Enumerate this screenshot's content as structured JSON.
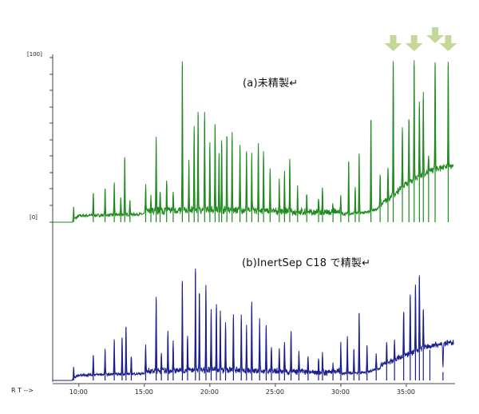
{
  "chart_data": [
    {
      "type": "line",
      "name": "panel-a",
      "label": "(a)未精製↵",
      "color": "#1e8a1e",
      "yticks": [
        "[100]",
        "[0]"
      ],
      "xlim": [
        8.0,
        38.6
      ],
      "ylim": [
        0,
        100
      ],
      "baseline": {
        "x": [
          8.0,
          9.5,
          10.0,
          15.0,
          20.0,
          25.0,
          29.0,
          30.0,
          32.0,
          33.0,
          34.0,
          35.0,
          36.0,
          37.0,
          38.5
        ],
        "y": [
          0,
          0,
          3,
          4,
          5,
          4,
          3,
          4,
          5,
          8,
          14,
          21,
          26,
          29,
          32
        ]
      },
      "peaks": [
        {
          "rt": 9.6,
          "height": 8
        },
        {
          "rt": 11.1,
          "height": 17
        },
        {
          "rt": 12.0,
          "height": 20
        },
        {
          "rt": 12.7,
          "height": 23
        },
        {
          "rt": 13.2,
          "height": 14
        },
        {
          "rt": 13.5,
          "height": 38
        },
        {
          "rt": 13.9,
          "height": 13
        },
        {
          "rt": 15.1,
          "height": 19
        },
        {
          "rt": 15.5,
          "height": 13
        },
        {
          "rt": 15.9,
          "height": 48
        },
        {
          "rt": 16.2,
          "height": 18
        },
        {
          "rt": 16.7,
          "height": 23
        },
        {
          "rt": 17.2,
          "height": 16
        },
        {
          "rt": 17.9,
          "height": 95
        },
        {
          "rt": 18.4,
          "height": 33
        },
        {
          "rt": 18.8,
          "height": 55
        },
        {
          "rt": 19.1,
          "height": 65
        },
        {
          "rt": 19.6,
          "height": 62
        },
        {
          "rt": 20.0,
          "height": 45
        },
        {
          "rt": 20.4,
          "height": 58
        },
        {
          "rt": 20.7,
          "height": 38
        },
        {
          "rt": 20.9,
          "height": 47
        },
        {
          "rt": 21.3,
          "height": 52
        },
        {
          "rt": 21.7,
          "height": 50
        },
        {
          "rt": 22.3,
          "height": 45
        },
        {
          "rt": 22.8,
          "height": 42
        },
        {
          "rt": 23.2,
          "height": 38
        },
        {
          "rt": 23.7,
          "height": 45
        },
        {
          "rt": 24.1,
          "height": 40
        },
        {
          "rt": 24.6,
          "height": 30
        },
        {
          "rt": 25.3,
          "height": 22
        },
        {
          "rt": 25.7,
          "height": 28
        },
        {
          "rt": 26.1,
          "height": 35
        },
        {
          "rt": 26.7,
          "height": 18
        },
        {
          "rt": 27.4,
          "height": 16
        },
        {
          "rt": 28.3,
          "height": 12
        },
        {
          "rt": 28.6,
          "height": 18
        },
        {
          "rt": 29.4,
          "height": 8
        },
        {
          "rt": 30.0,
          "height": 14
        },
        {
          "rt": 30.6,
          "height": 36
        },
        {
          "rt": 31.1,
          "height": 20
        },
        {
          "rt": 31.4,
          "height": 40
        },
        {
          "rt": 32.3,
          "height": 62
        },
        {
          "rt": 33.0,
          "height": 28
        },
        {
          "rt": 33.6,
          "height": 32
        },
        {
          "rt": 34.0,
          "height": 95
        },
        {
          "rt": 34.7,
          "height": 55
        },
        {
          "rt": 35.2,
          "height": 62
        },
        {
          "rt": 35.6,
          "height": 95
        },
        {
          "rt": 36.0,
          "height": 70
        },
        {
          "rt": 36.3,
          "height": 75
        },
        {
          "rt": 36.7,
          "height": 38
        },
        {
          "rt": 37.2,
          "height": 95
        },
        {
          "rt": 38.2,
          "height": 95
        }
      ],
      "markers": {
        "type": "down-arrow",
        "color": "#c5d89a",
        "rt": [
          34.0,
          35.6,
          37.2,
          38.2
        ]
      }
    },
    {
      "type": "line",
      "name": "panel-b",
      "label": "(b)InertSep C18 で精製↵",
      "color": "#1a1f8c",
      "xlim": [
        8.0,
        38.6
      ],
      "ylim": [
        0,
        100
      ],
      "baseline": {
        "x": [
          8.0,
          9.5,
          10.0,
          15.0,
          20.0,
          25.0,
          29.0,
          30.0,
          32.0,
          33.0,
          34.0,
          35.0,
          36.0,
          37.0,
          38.5
        ],
        "y": [
          0,
          0,
          3,
          4,
          5,
          4,
          3,
          4,
          5,
          8,
          12,
          16,
          20,
          23,
          25
        ]
      },
      "peaks": [
        {
          "rt": 9.6,
          "height": 8
        },
        {
          "rt": 11.1,
          "height": 18
        },
        {
          "rt": 12.0,
          "height": 21
        },
        {
          "rt": 12.7,
          "height": 28
        },
        {
          "rt": 13.3,
          "height": 30
        },
        {
          "rt": 13.6,
          "height": 38
        },
        {
          "rt": 14.0,
          "height": 17
        },
        {
          "rt": 15.1,
          "height": 22
        },
        {
          "rt": 15.9,
          "height": 58
        },
        {
          "rt": 16.3,
          "height": 18
        },
        {
          "rt": 16.8,
          "height": 32
        },
        {
          "rt": 17.2,
          "height": 24
        },
        {
          "rt": 17.9,
          "height": 70
        },
        {
          "rt": 18.3,
          "height": 30
        },
        {
          "rt": 18.9,
          "height": 78
        },
        {
          "rt": 19.2,
          "height": 62
        },
        {
          "rt": 19.7,
          "height": 65
        },
        {
          "rt": 20.1,
          "height": 48
        },
        {
          "rt": 20.5,
          "height": 52
        },
        {
          "rt": 20.8,
          "height": 46
        },
        {
          "rt": 21.2,
          "height": 38
        },
        {
          "rt": 21.8,
          "height": 45
        },
        {
          "rt": 22.4,
          "height": 43
        },
        {
          "rt": 22.8,
          "height": 35
        },
        {
          "rt": 23.2,
          "height": 54
        },
        {
          "rt": 23.8,
          "height": 40
        },
        {
          "rt": 24.3,
          "height": 38
        },
        {
          "rt": 24.7,
          "height": 22
        },
        {
          "rt": 25.3,
          "height": 20
        },
        {
          "rt": 25.7,
          "height": 25
        },
        {
          "rt": 26.2,
          "height": 34
        },
        {
          "rt": 26.8,
          "height": 18
        },
        {
          "rt": 27.5,
          "height": 16
        },
        {
          "rt": 28.3,
          "height": 14
        },
        {
          "rt": 28.6,
          "height": 16
        },
        {
          "rt": 29.4,
          "height": 8
        },
        {
          "rt": 30.0,
          "height": 24
        },
        {
          "rt": 30.5,
          "height": 30
        },
        {
          "rt": 31.0,
          "height": 22
        },
        {
          "rt": 31.4,
          "height": 48
        },
        {
          "rt": 32.0,
          "height": 24
        },
        {
          "rt": 32.7,
          "height": 18
        },
        {
          "rt": 33.5,
          "height": 25
        },
        {
          "rt": 34.1,
          "height": 26
        },
        {
          "rt": 34.8,
          "height": 48
        },
        {
          "rt": 35.3,
          "height": 60
        },
        {
          "rt": 35.7,
          "height": 66
        },
        {
          "rt": 36.0,
          "height": 74
        },
        {
          "rt": 36.3,
          "height": 50
        },
        {
          "rt": 36.8,
          "height": 22
        },
        {
          "rt": 37.8,
          "height": 6
        }
      ]
    }
  ],
  "x_axis": {
    "label": "R T -->",
    "ticks": [
      {
        "value": 10,
        "label": "10:00"
      },
      {
        "value": 15,
        "label": "15:00"
      },
      {
        "value": 20,
        "label": "20:00"
      },
      {
        "value": 25,
        "label": "25:00"
      },
      {
        "value": 30,
        "label": "30:00"
      },
      {
        "value": 35,
        "label": "35:00"
      }
    ]
  }
}
